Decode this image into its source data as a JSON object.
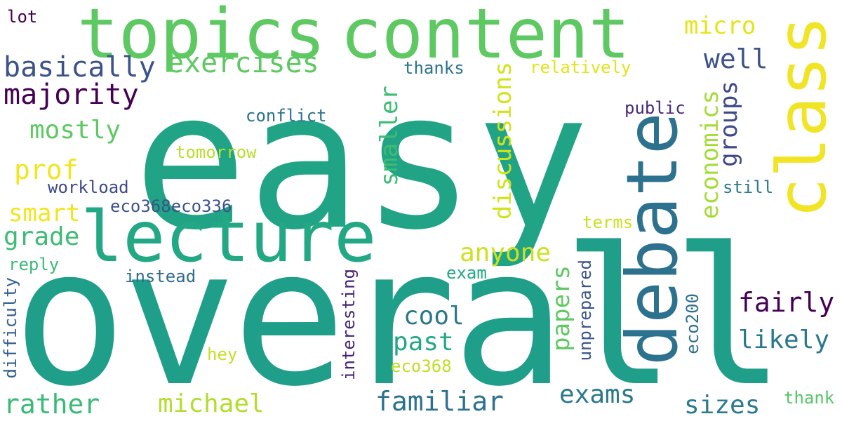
{
  "word_cloud": {
    "background": "#ffffff",
    "words": {
      "easy": "easy",
      "overall": "overall",
      "topics": "topics",
      "content": "content",
      "lecture": "lecture",
      "class": "class",
      "debate": "debate",
      "basically": "basically",
      "exercises": "exercises",
      "majority": "majority",
      "mostly": "mostly",
      "prof": "prof",
      "smart": "smart",
      "grade": "grade",
      "rather": "rather",
      "michael": "michael",
      "familiar": "familiar",
      "exams": "exams",
      "sizes": "sizes",
      "cool": "cool",
      "past": "past",
      "anyone": "anyone",
      "fairly": "fairly",
      "likely": "likely",
      "well": "well",
      "micro": "micro",
      "smaller": "smaller",
      "discussions": "discussions",
      "economics": "economics",
      "groups": "groups",
      "papers": "papers",
      "lot": "lot",
      "thanks": "thanks",
      "relatively": "relatively",
      "conflict": "conflict",
      "public": "public",
      "tomorrow": "tomorrow",
      "workload": "workload",
      "eco368eco336": "eco368eco336",
      "still": "still",
      "terms": "terms",
      "reply": "reply",
      "instead": "instead",
      "exam": "exam",
      "hey": "hey",
      "eco368": "eco368",
      "thank": "thank",
      "difficulty": "difficulty",
      "interesting": "interesting",
      "unprepared": "unprepared",
      "eco200": "eco200"
    }
  }
}
